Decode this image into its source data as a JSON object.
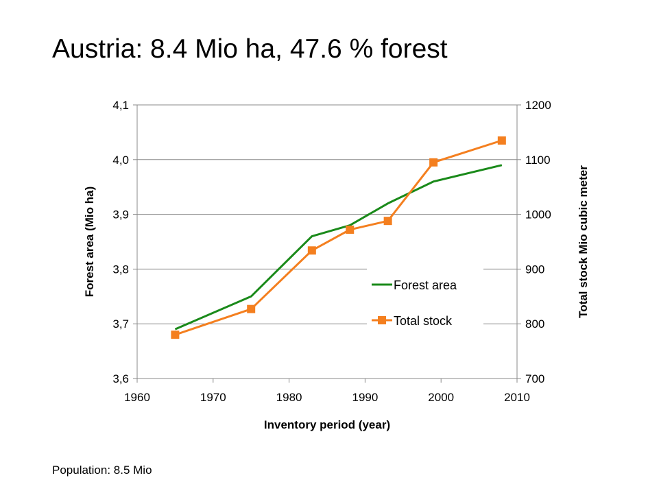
{
  "slide": {
    "title": "Austria: 8.4 Mio ha, 47.6 % forest",
    "footnote": "Population: 8.5 Mio"
  },
  "chart_data": {
    "type": "line",
    "xlabel": "Inventory period (year)",
    "ylabel_left": "Forest area (Mio ha)",
    "ylabel_right": "Total stock Mio cubic meter",
    "xlim": [
      1960,
      2010
    ],
    "x_ticks": [
      "1960",
      "1970",
      "1980",
      "1990",
      "2000",
      "2010"
    ],
    "ylim_left": [
      3.6,
      4.1
    ],
    "y_ticks_left": [
      "3,6",
      "3,7",
      "3,8",
      "3,9",
      "4,0",
      "4,1"
    ],
    "ylim_right": [
      700,
      1200
    ],
    "y_ticks_right": [
      "700",
      "800",
      "900",
      "1000",
      "1100",
      "1200"
    ],
    "grid": "horizontal",
    "legend_position": "center-right",
    "series": [
      {
        "name": "Forest area",
        "axis": "left",
        "color": "#1a8a1a",
        "marker": "none",
        "x": [
          1965,
          1975,
          1983,
          1988,
          1993,
          1999,
          2008
        ],
        "y": [
          3.69,
          3.75,
          3.86,
          3.88,
          3.92,
          3.96,
          3.99
        ]
      },
      {
        "name": "Total stock",
        "axis": "right",
        "color": "#f47f1f",
        "marker": "square",
        "x": [
          1965,
          1975,
          1983,
          1988,
          1993,
          1999,
          2008
        ],
        "y": [
          780,
          827,
          934,
          972,
          988,
          1095,
          1135
        ]
      }
    ]
  }
}
